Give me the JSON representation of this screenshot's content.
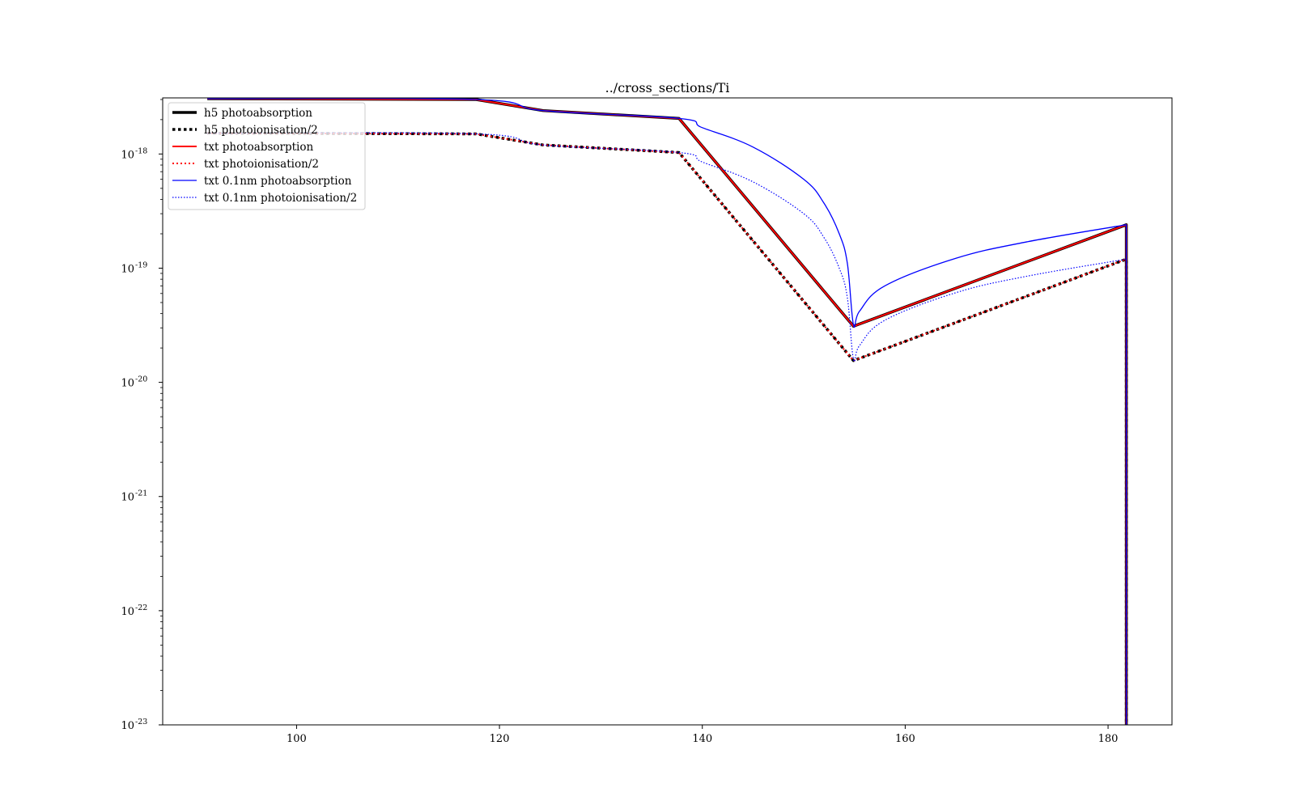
{
  "chart_data": {
    "type": "line",
    "title": "../cross_sections/Ti",
    "xlabel": "",
    "ylabel": "",
    "xlim": [
      86.8,
      186.3
    ],
    "ylim": [
      1e-23,
      3.1e-18
    ],
    "yscale": "log",
    "grid": false,
    "legend_position": "top-left",
    "x_ticks": [
      100,
      120,
      140,
      160,
      180
    ],
    "y_ticks": [
      {
        "value": 1e-23,
        "base": "10",
        "exp": "-23"
      },
      {
        "value": 1e-22,
        "base": "10",
        "exp": "-22"
      },
      {
        "value": 1e-21,
        "base": "10",
        "exp": "-21"
      },
      {
        "value": 1e-20,
        "base": "10",
        "exp": "-20"
      },
      {
        "value": 1e-19,
        "base": "10",
        "exp": "-19"
      },
      {
        "value": 1e-18,
        "base": "10",
        "exp": "-18"
      }
    ],
    "series": [
      {
        "name": "h5 photoabsorption",
        "color": "#000000",
        "style": "solid",
        "width": 3.5,
        "interp": "linear",
        "x": [
          91.2,
          117.7,
          124.3,
          137.7,
          154.9,
          181.8,
          181.8
        ],
        "y": [
          3.05e-18,
          3e-18,
          2.4e-18,
          2.05e-18,
          3.1e-20,
          2.4e-19,
          1e-24
        ]
      },
      {
        "name": "h5 photoionisation/2",
        "color": "#000000",
        "style": "dotted",
        "width": 3.5,
        "interp": "linear",
        "x": [
          91.2,
          117.7,
          124.3,
          137.7,
          154.9,
          181.8,
          181.8
        ],
        "y": [
          1.52e-18,
          1.5e-18,
          1.2e-18,
          1.03e-18,
          1.55e-20,
          1.2e-19,
          1e-24
        ]
      },
      {
        "name": "txt photoabsorption",
        "color": "#ff0000",
        "style": "solid",
        "width": 2,
        "interp": "linear",
        "x": [
          91.2,
          117.7,
          124.3,
          137.7,
          154.9,
          181.8,
          181.8
        ],
        "y": [
          3.05e-18,
          3e-18,
          2.4e-18,
          2.05e-18,
          3.1e-20,
          2.4e-19,
          1e-24
        ]
      },
      {
        "name": "txt photoionisation/2",
        "color": "#ff0000",
        "style": "dotted",
        "width": 2,
        "interp": "linear",
        "x": [
          91.2,
          117.7,
          124.3,
          137.7,
          154.9,
          181.8,
          181.8
        ],
        "y": [
          1.52e-18,
          1.5e-18,
          1.2e-18,
          1.03e-18,
          1.55e-20,
          1.2e-19,
          1e-24
        ]
      },
      {
        "name": "txt 0.1nm photoabsorption",
        "color": "#0000ff",
        "style": "solid",
        "width": 1.3,
        "interp": "spline",
        "x": [
          91.2,
          117.7,
          124.3,
          137.7,
          140,
          145,
          150,
          152,
          153.5,
          154.3,
          154.9,
          155.5,
          158,
          165,
          172,
          181.8,
          181.8
        ],
        "y": [
          3.05e-18,
          3e-18,
          2.4e-18,
          2.05e-18,
          1.7e-18,
          1.15e-18,
          6e-19,
          3.7e-19,
          2e-19,
          1.1e-19,
          3.2e-20,
          4.2e-20,
          7e-20,
          1.22e-19,
          1.7e-19,
          2.4e-19,
          1e-24
        ]
      },
      {
        "name": "txt 0.1nm photoionisation/2",
        "color": "#0000ff",
        "style": "dotted-thin",
        "width": 1.2,
        "interp": "spline",
        "x": [
          91.2,
          117.7,
          124.3,
          137.7,
          140,
          145,
          150,
          152,
          153.5,
          154.3,
          154.9,
          155.5,
          158,
          165,
          172,
          181.8,
          181.8
        ],
        "y": [
          1.52e-18,
          1.5e-18,
          1.2e-18,
          1.03e-18,
          8.5e-19,
          5.7e-19,
          3e-19,
          1.85e-19,
          1e-19,
          5.5e-20,
          1.6e-20,
          2.1e-20,
          3.5e-20,
          6.1e-20,
          8.5e-20,
          1.2e-19,
          1e-24
        ]
      }
    ]
  }
}
